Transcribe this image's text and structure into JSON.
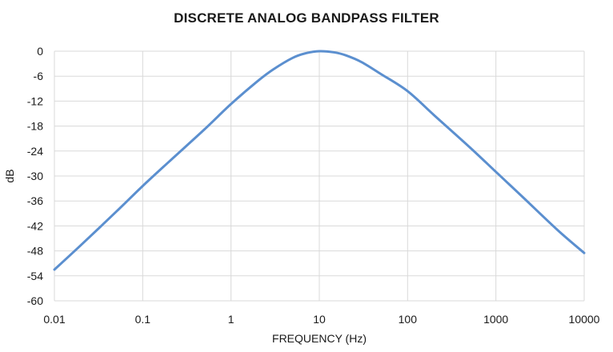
{
  "chart_data": {
    "type": "line",
    "title": "DISCRETE ANALOG BANDPASS FILTER",
    "xlabel": "FREQUENCY (Hz)",
    "ylabel": "dB",
    "x_scale": "log",
    "xlim": [
      0.01,
      10000
    ],
    "ylim": [
      -60,
      0
    ],
    "x_ticks": [
      "0.01",
      "0.1",
      "1",
      "10",
      "100",
      "1000",
      "10000"
    ],
    "y_ticks": [
      "0",
      "-6",
      "-12",
      "-18",
      "-24",
      "-30",
      "-36",
      "-42",
      "-48",
      "-54",
      "-60"
    ],
    "grid": true,
    "line_color": "#5b8fcf",
    "series": [
      {
        "x": [
          0.01,
          0.02,
          0.05,
          0.1,
          0.2,
          0.5,
          1,
          2,
          3,
          5,
          7,
          10,
          15,
          20,
          30,
          50,
          100,
          200,
          500,
          1000,
          2000,
          5000,
          10000
        ],
        "values": [
          -52.5,
          -46.6,
          -38.6,
          -32.4,
          -26.5,
          -18.8,
          -12.7,
          -7.2,
          -4.4,
          -1.6,
          -0.5,
          0,
          -0.3,
          -1.0,
          -2.6,
          -5.5,
          -9.6,
          -15.4,
          -23.0,
          -29.0,
          -35.0,
          -43.0,
          -48.5
        ]
      }
    ]
  }
}
